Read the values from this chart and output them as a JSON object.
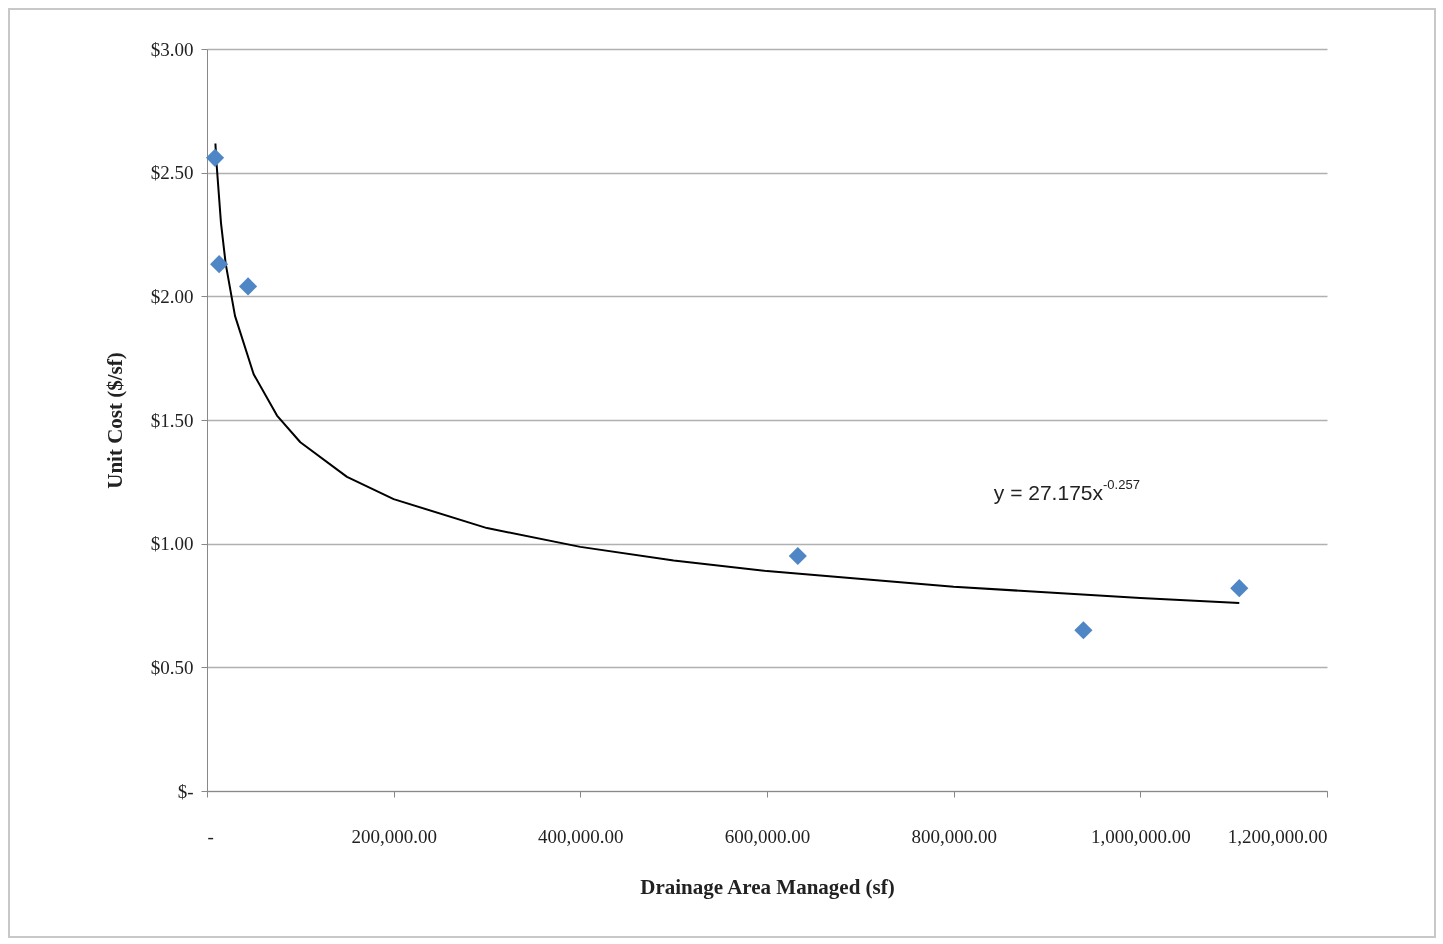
{
  "chart_data": {
    "type": "scatter",
    "xlabel": "Drainage Area Managed (sf)",
    "ylabel": "Unit Cost ($/sf)",
    "xlim": [
      0,
      1200000
    ],
    "ylim": [
      0,
      3
    ],
    "xticks": [
      {
        "value": 0,
        "label": "-"
      },
      {
        "value": 200000,
        "label": "200,000.00"
      },
      {
        "value": 400000,
        "label": "400,000.00"
      },
      {
        "value": 600000,
        "label": "600,000.00"
      },
      {
        "value": 800000,
        "label": "800,000.00"
      },
      {
        "value": 1000000,
        "label": "1,000,000.00"
      },
      {
        "value": 1200000,
        "label": "1,200,000.00"
      }
    ],
    "yticks": [
      {
        "value": 0,
        "label": "$-"
      },
      {
        "value": 0.5,
        "label": "$0.50"
      },
      {
        "value": 1,
        "label": "$1.00"
      },
      {
        "value": 1.5,
        "label": "$1.50"
      },
      {
        "value": 2,
        "label": "$2.00"
      },
      {
        "value": 2.5,
        "label": "$2.50"
      },
      {
        "value": 3,
        "label": "$3.00"
      }
    ],
    "grid": "y",
    "series": [
      {
        "marker": "diamond",
        "color": "#4f86c6",
        "x": [
          8600,
          13000,
          44000,
          633000,
          939000,
          1106000
        ],
        "values": [
          2.56,
          2.13,
          2.04,
          0.95,
          0.65,
          0.82
        ]
      },
      {
        "type": "line",
        "color": "#000000",
        "x": [
          9000,
          10000,
          15000,
          20000,
          30000,
          50000,
          75000,
          100000,
          150000,
          200000,
          300000,
          400000,
          500000,
          600000,
          800000,
          1000000,
          1106000
        ],
        "values": [
          2.618,
          2.548,
          2.296,
          2.132,
          1.921,
          1.685,
          1.518,
          1.41,
          1.27,
          1.18,
          1.063,
          0.987,
          0.932,
          0.889,
          0.826,
          0.78,
          0.76
        ]
      }
    ],
    "annotations": [
      "y = 27.175x$^{-0.257}$"
    ]
  }
}
